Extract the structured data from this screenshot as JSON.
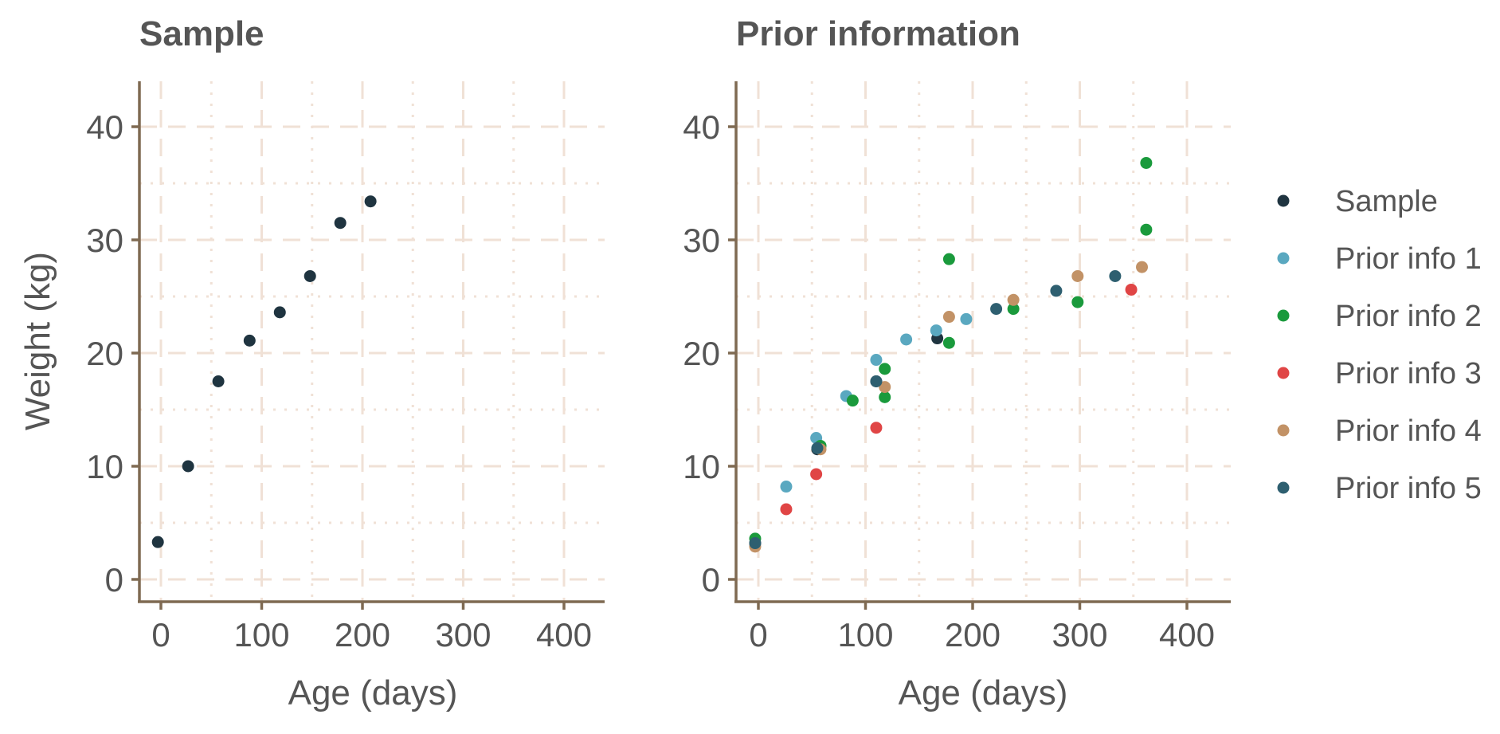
{
  "chart_data": [
    {
      "type": "scatter",
      "title": "Sample",
      "xlabel": "Age (days)",
      "ylabel": "Weight (kg)",
      "xlim": [
        -20,
        440
      ],
      "ylim": [
        -2,
        44
      ],
      "x_ticks": [
        0,
        100,
        200,
        300,
        400
      ],
      "y_ticks": [
        0,
        10,
        20,
        30,
        40
      ],
      "x_tick_labels": [
        "0",
        "100",
        "200",
        "300",
        "400"
      ],
      "y_tick_labels": [
        "0",
        "10",
        "20",
        "30",
        "40"
      ],
      "grid": true,
      "series": [
        {
          "name": "Sample",
          "color": "#1f3440",
          "x": [
            -3,
            27,
            57,
            88,
            118,
            148,
            178,
            208
          ],
          "y": [
            3.3,
            10.0,
            17.5,
            21.1,
            23.6,
            26.8,
            31.5,
            33.4
          ]
        }
      ]
    },
    {
      "type": "scatter",
      "title": "Prior information",
      "xlabel": "Age (days)",
      "ylabel": "",
      "xlim": [
        -20,
        440
      ],
      "ylim": [
        -2,
        44
      ],
      "x_ticks": [
        0,
        100,
        200,
        300,
        400
      ],
      "y_ticks": [
        0,
        10,
        20,
        30,
        40
      ],
      "x_tick_labels": [
        "0",
        "100",
        "200",
        "300",
        "400"
      ],
      "y_tick_labels": [
        "0",
        "10",
        "20",
        "30",
        "40"
      ],
      "grid": true,
      "legend_position": "right",
      "series": [
        {
          "name": "Sample",
          "color": "#1f3440",
          "x": [
            -3,
            55,
            110,
            167
          ],
          "y": [
            3.2,
            11.5,
            17.5,
            21.3
          ]
        },
        {
          "name": "Prior info 1",
          "color": "#5aa8c0",
          "x": [
            26,
            54,
            82,
            110,
            138,
            166,
            194
          ],
          "y": [
            8.2,
            12.5,
            16.2,
            19.4,
            21.2,
            22.0,
            23.0
          ]
        },
        {
          "name": "Prior info 2",
          "color": "#1a9a3c",
          "x": [
            -3,
            58,
            88,
            118,
            118,
            178,
            178,
            238,
            298,
            362,
            362
          ],
          "y": [
            3.6,
            11.8,
            15.8,
            18.6,
            16.1,
            28.3,
            20.9,
            23.9,
            24.5,
            30.9,
            36.8
          ]
        },
        {
          "name": "Prior info 3",
          "color": "#e04545",
          "x": [
            26,
            54,
            110,
            348
          ],
          "y": [
            6.2,
            9.3,
            13.4,
            25.6
          ]
        },
        {
          "name": "Prior info 4",
          "color": "#c29266",
          "x": [
            -3,
            58,
            118,
            178,
            238,
            298,
            358
          ],
          "y": [
            2.9,
            11.5,
            17.0,
            23.2,
            24.7,
            26.8,
            27.6
          ]
        },
        {
          "name": "Prior info 5",
          "color": "#2e5f70",
          "x": [
            -3,
            55,
            110,
            222,
            278,
            333
          ],
          "y": [
            3.2,
            11.6,
            17.5,
            23.9,
            25.5,
            26.8
          ]
        }
      ]
    }
  ]
}
